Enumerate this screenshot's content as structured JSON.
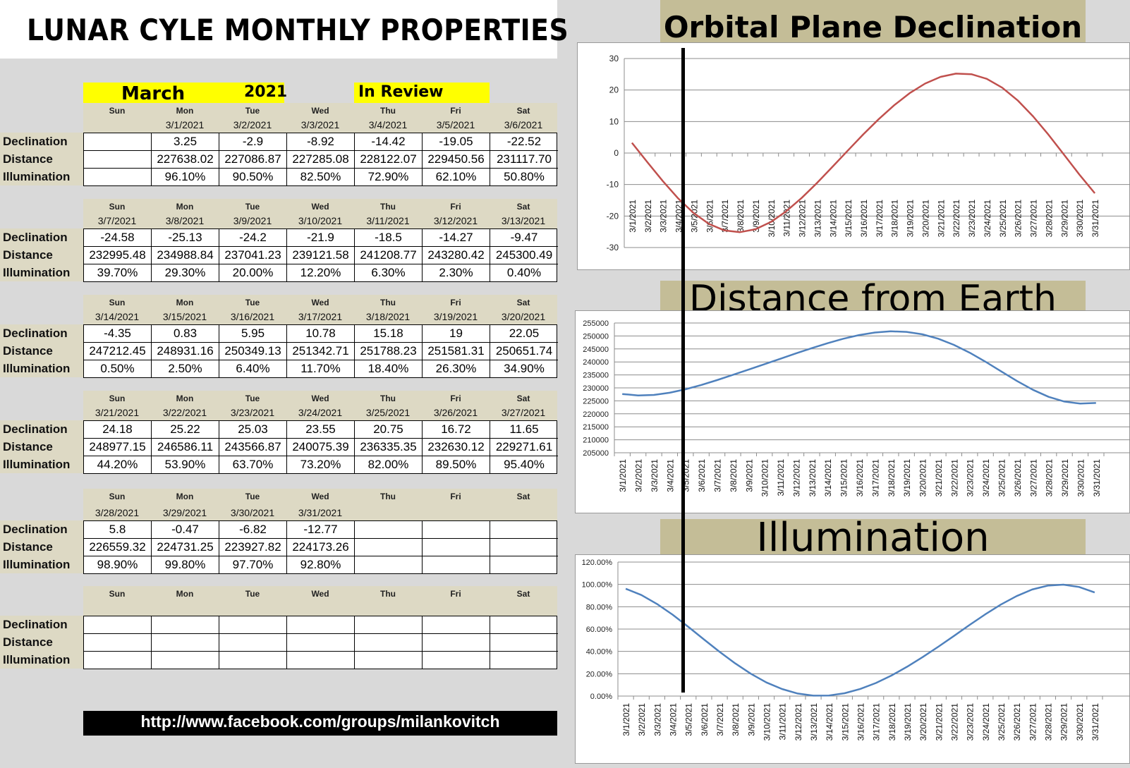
{
  "title": "LUNAR CYLE MONTHLY PROPERTIES",
  "header": {
    "month": "March",
    "year": "2021",
    "review": "In Review"
  },
  "row_labels": [
    "Declination",
    "Distance",
    "Illumination"
  ],
  "weeks": [
    {
      "days": [
        "Sun",
        "Mon",
        "Tue",
        "Wed",
        "Thu",
        "Fri",
        "Sat"
      ],
      "dates": [
        "",
        "3/1/2021",
        "3/2/2021",
        "3/3/2021",
        "3/4/2021",
        "3/5/2021",
        "3/6/2021"
      ],
      "declination": [
        "",
        "3.25",
        "-2.9",
        "-8.92",
        "-14.42",
        "-19.05",
        "-22.52"
      ],
      "distance": [
        "",
        "227638.02",
        "227086.87",
        "227285.08",
        "228122.07",
        "229450.56",
        "231117.70"
      ],
      "illumination": [
        "",
        "96.10%",
        "90.50%",
        "82.50%",
        "72.90%",
        "62.10%",
        "50.80%"
      ]
    },
    {
      "days": [
        "Sun",
        "Mon",
        "Tue",
        "Wed",
        "Thu",
        "Fri",
        "Sat"
      ],
      "dates": [
        "3/7/2021",
        "3/8/2021",
        "3/9/2021",
        "3/10/2021",
        "3/11/2021",
        "3/12/2021",
        "3/13/2021"
      ],
      "declination": [
        "-24.58",
        "-25.13",
        "-24.2",
        "-21.9",
        "-18.5",
        "-14.27",
        "-9.47"
      ],
      "distance": [
        "232995.48",
        "234988.84",
        "237041.23",
        "239121.58",
        "241208.77",
        "243280.42",
        "245300.49"
      ],
      "illumination": [
        "39.70%",
        "29.30%",
        "20.00%",
        "12.20%",
        "6.30%",
        "2.30%",
        "0.40%"
      ]
    },
    {
      "days": [
        "Sun",
        "Mon",
        "Tue",
        "Wed",
        "Thu",
        "Fri",
        "Sat"
      ],
      "dates": [
        "3/14/2021",
        "3/15/2021",
        "3/16/2021",
        "3/17/2021",
        "3/18/2021",
        "3/19/2021",
        "3/20/2021"
      ],
      "declination": [
        "-4.35",
        "0.83",
        "5.95",
        "10.78",
        "15.18",
        "19",
        "22.05"
      ],
      "distance": [
        "247212.45",
        "248931.16",
        "250349.13",
        "251342.71",
        "251788.23",
        "251581.31",
        "250651.74"
      ],
      "illumination": [
        "0.50%",
        "2.50%",
        "6.40%",
        "11.70%",
        "18.40%",
        "26.30%",
        "34.90%"
      ]
    },
    {
      "days": [
        "Sun",
        "Mon",
        "Tue",
        "Wed",
        "Thu",
        "Fri",
        "Sat"
      ],
      "dates": [
        "3/21/2021",
        "3/22/2021",
        "3/23/2021",
        "3/24/2021",
        "3/25/2021",
        "3/26/2021",
        "3/27/2021"
      ],
      "declination": [
        "24.18",
        "25.22",
        "25.03",
        "23.55",
        "20.75",
        "16.72",
        "11.65"
      ],
      "distance": [
        "248977.15",
        "246586.11",
        "243566.87",
        "240075.39",
        "236335.35",
        "232630.12",
        "229271.61"
      ],
      "illumination": [
        "44.20%",
        "53.90%",
        "63.70%",
        "73.20%",
        "82.00%",
        "89.50%",
        "95.40%"
      ]
    },
    {
      "days": [
        "Sun",
        "Mon",
        "Tue",
        "Wed",
        "Thu",
        "Fri",
        "Sat"
      ],
      "dates": [
        "3/28/2021",
        "3/29/2021",
        "3/30/2021",
        "3/31/2021",
        "",
        "",
        ""
      ],
      "declination": [
        "5.8",
        "-0.47",
        "-6.82",
        "-12.77",
        "",
        "",
        ""
      ],
      "distance": [
        "226559.32",
        "224731.25",
        "223927.82",
        "224173.26",
        "",
        "",
        ""
      ],
      "illumination": [
        "98.90%",
        "99.80%",
        "97.70%",
        "92.80%",
        "",
        "",
        ""
      ]
    },
    {
      "days": [
        "Sun",
        "Mon",
        "Tue",
        "Wed",
        "Thu",
        "Fri",
        "Sat"
      ],
      "dates": [
        "",
        "",
        "",
        "",
        "",
        "",
        ""
      ],
      "declination": [
        "",
        "",
        "",
        "",
        "",
        "",
        ""
      ],
      "distance": [
        "",
        "",
        "",
        "",
        "",
        "",
        ""
      ],
      "illumination": [
        "",
        "",
        "",
        "",
        "",
        "",
        ""
      ]
    }
  ],
  "url": "http://www.facebook.com/groups/milankovitch",
  "chart_data": [
    {
      "type": "line",
      "title": "Orbital Plane Declination",
      "color": "#c0504d",
      "x": [
        "3/1/2021",
        "3/2/2021",
        "3/3/2021",
        "3/4/2021",
        "3/5/2021",
        "3/6/2021",
        "3/7/2021",
        "3/8/2021",
        "3/9/2021",
        "3/10/2021",
        "3/11/2021",
        "3/12/2021",
        "3/13/2021",
        "3/14/2021",
        "3/15/2021",
        "3/16/2021",
        "3/17/2021",
        "3/18/2021",
        "3/19/2021",
        "3/20/2021",
        "3/21/2021",
        "3/22/2021",
        "3/23/2021",
        "3/24/2021",
        "3/25/2021",
        "3/26/2021",
        "3/27/2021",
        "3/28/2021",
        "3/29/2021",
        "3/30/2021",
        "3/31/2021"
      ],
      "values": [
        3.25,
        -2.9,
        -8.92,
        -14.42,
        -19.05,
        -22.52,
        -24.58,
        -25.13,
        -24.2,
        -21.9,
        -18.5,
        -14.27,
        -9.47,
        -4.35,
        0.83,
        5.95,
        10.78,
        15.18,
        19,
        22.05,
        24.18,
        25.22,
        25.03,
        23.55,
        20.75,
        16.72,
        11.65,
        5.8,
        -0.47,
        -6.82,
        -12.77
      ],
      "ylim": [
        -30,
        30
      ],
      "yticks": [
        30,
        20,
        10,
        0,
        -10,
        -20,
        -30
      ],
      "ytick_labels": [
        "30",
        "20",
        "10",
        "0",
        "-10",
        "-20",
        "-30"
      ]
    },
    {
      "type": "line",
      "title": "Distance from Earth",
      "color": "#4f81bd",
      "x": [
        "3/1/2021",
        "3/2/2021",
        "3/3/2021",
        "3/4/2021",
        "3/5/2021",
        "3/6/2021",
        "3/7/2021",
        "3/8/2021",
        "3/9/2021",
        "3/10/2021",
        "3/11/2021",
        "3/12/2021",
        "3/13/2021",
        "3/14/2021",
        "3/15/2021",
        "3/16/2021",
        "3/17/2021",
        "3/18/2021",
        "3/19/2021",
        "3/20/2021",
        "3/21/2021",
        "3/22/2021",
        "3/23/2021",
        "3/24/2021",
        "3/25/2021",
        "3/26/2021",
        "3/27/2021",
        "3/28/2021",
        "3/29/2021",
        "3/30/2021",
        "3/31/2021"
      ],
      "values": [
        227638.02,
        227086.87,
        227285.08,
        228122.07,
        229450.56,
        231117.7,
        232995.48,
        234988.84,
        237041.23,
        239121.58,
        241208.77,
        243280.42,
        245300.49,
        247212.45,
        248931.16,
        250349.13,
        251342.71,
        251788.23,
        251581.31,
        250651.74,
        248977.15,
        246586.11,
        243566.87,
        240075.39,
        236335.35,
        232630.12,
        229271.61,
        226559.32,
        224731.25,
        223927.82,
        224173.26
      ],
      "ylim": [
        205000,
        255000
      ],
      "yticks": [
        255000,
        250000,
        245000,
        240000,
        235000,
        230000,
        225000,
        220000,
        215000,
        210000,
        205000
      ],
      "ytick_labels": [
        "255000",
        "250000",
        "245000",
        "240000",
        "235000",
        "230000",
        "225000",
        "220000",
        "215000",
        "210000",
        "205000"
      ]
    },
    {
      "type": "line",
      "title": "Illumination",
      "color": "#4f81bd",
      "x": [
        "3/1/2021",
        "3/2/2021",
        "3/3/2021",
        "3/4/2021",
        "3/5/2021",
        "3/6/2021",
        "3/7/2021",
        "3/8/2021",
        "3/9/2021",
        "3/10/2021",
        "3/11/2021",
        "3/12/2021",
        "3/13/2021",
        "3/14/2021",
        "3/15/2021",
        "3/16/2021",
        "3/17/2021",
        "3/18/2021",
        "3/19/2021",
        "3/20/2021",
        "3/21/2021",
        "3/22/2021",
        "3/23/2021",
        "3/24/2021",
        "3/25/2021",
        "3/26/2021",
        "3/27/2021",
        "3/28/2021",
        "3/29/2021",
        "3/30/2021",
        "3/31/2021"
      ],
      "values": [
        96.1,
        90.5,
        82.5,
        72.9,
        62.1,
        50.8,
        39.7,
        29.3,
        20.0,
        12.2,
        6.3,
        2.3,
        0.4,
        0.5,
        2.5,
        6.4,
        11.7,
        18.4,
        26.3,
        34.9,
        44.2,
        53.9,
        63.7,
        73.2,
        82.0,
        89.5,
        95.4,
        98.9,
        99.8,
        97.7,
        92.8
      ],
      "ylim": [
        0,
        120
      ],
      "yticks": [
        120,
        100,
        80,
        60,
        40,
        20,
        0
      ],
      "ytick_labels": [
        "120.00%",
        "100.00%",
        "80.00%",
        "60.00%",
        "40.00%",
        "20.00%",
        "0.00%"
      ]
    }
  ]
}
